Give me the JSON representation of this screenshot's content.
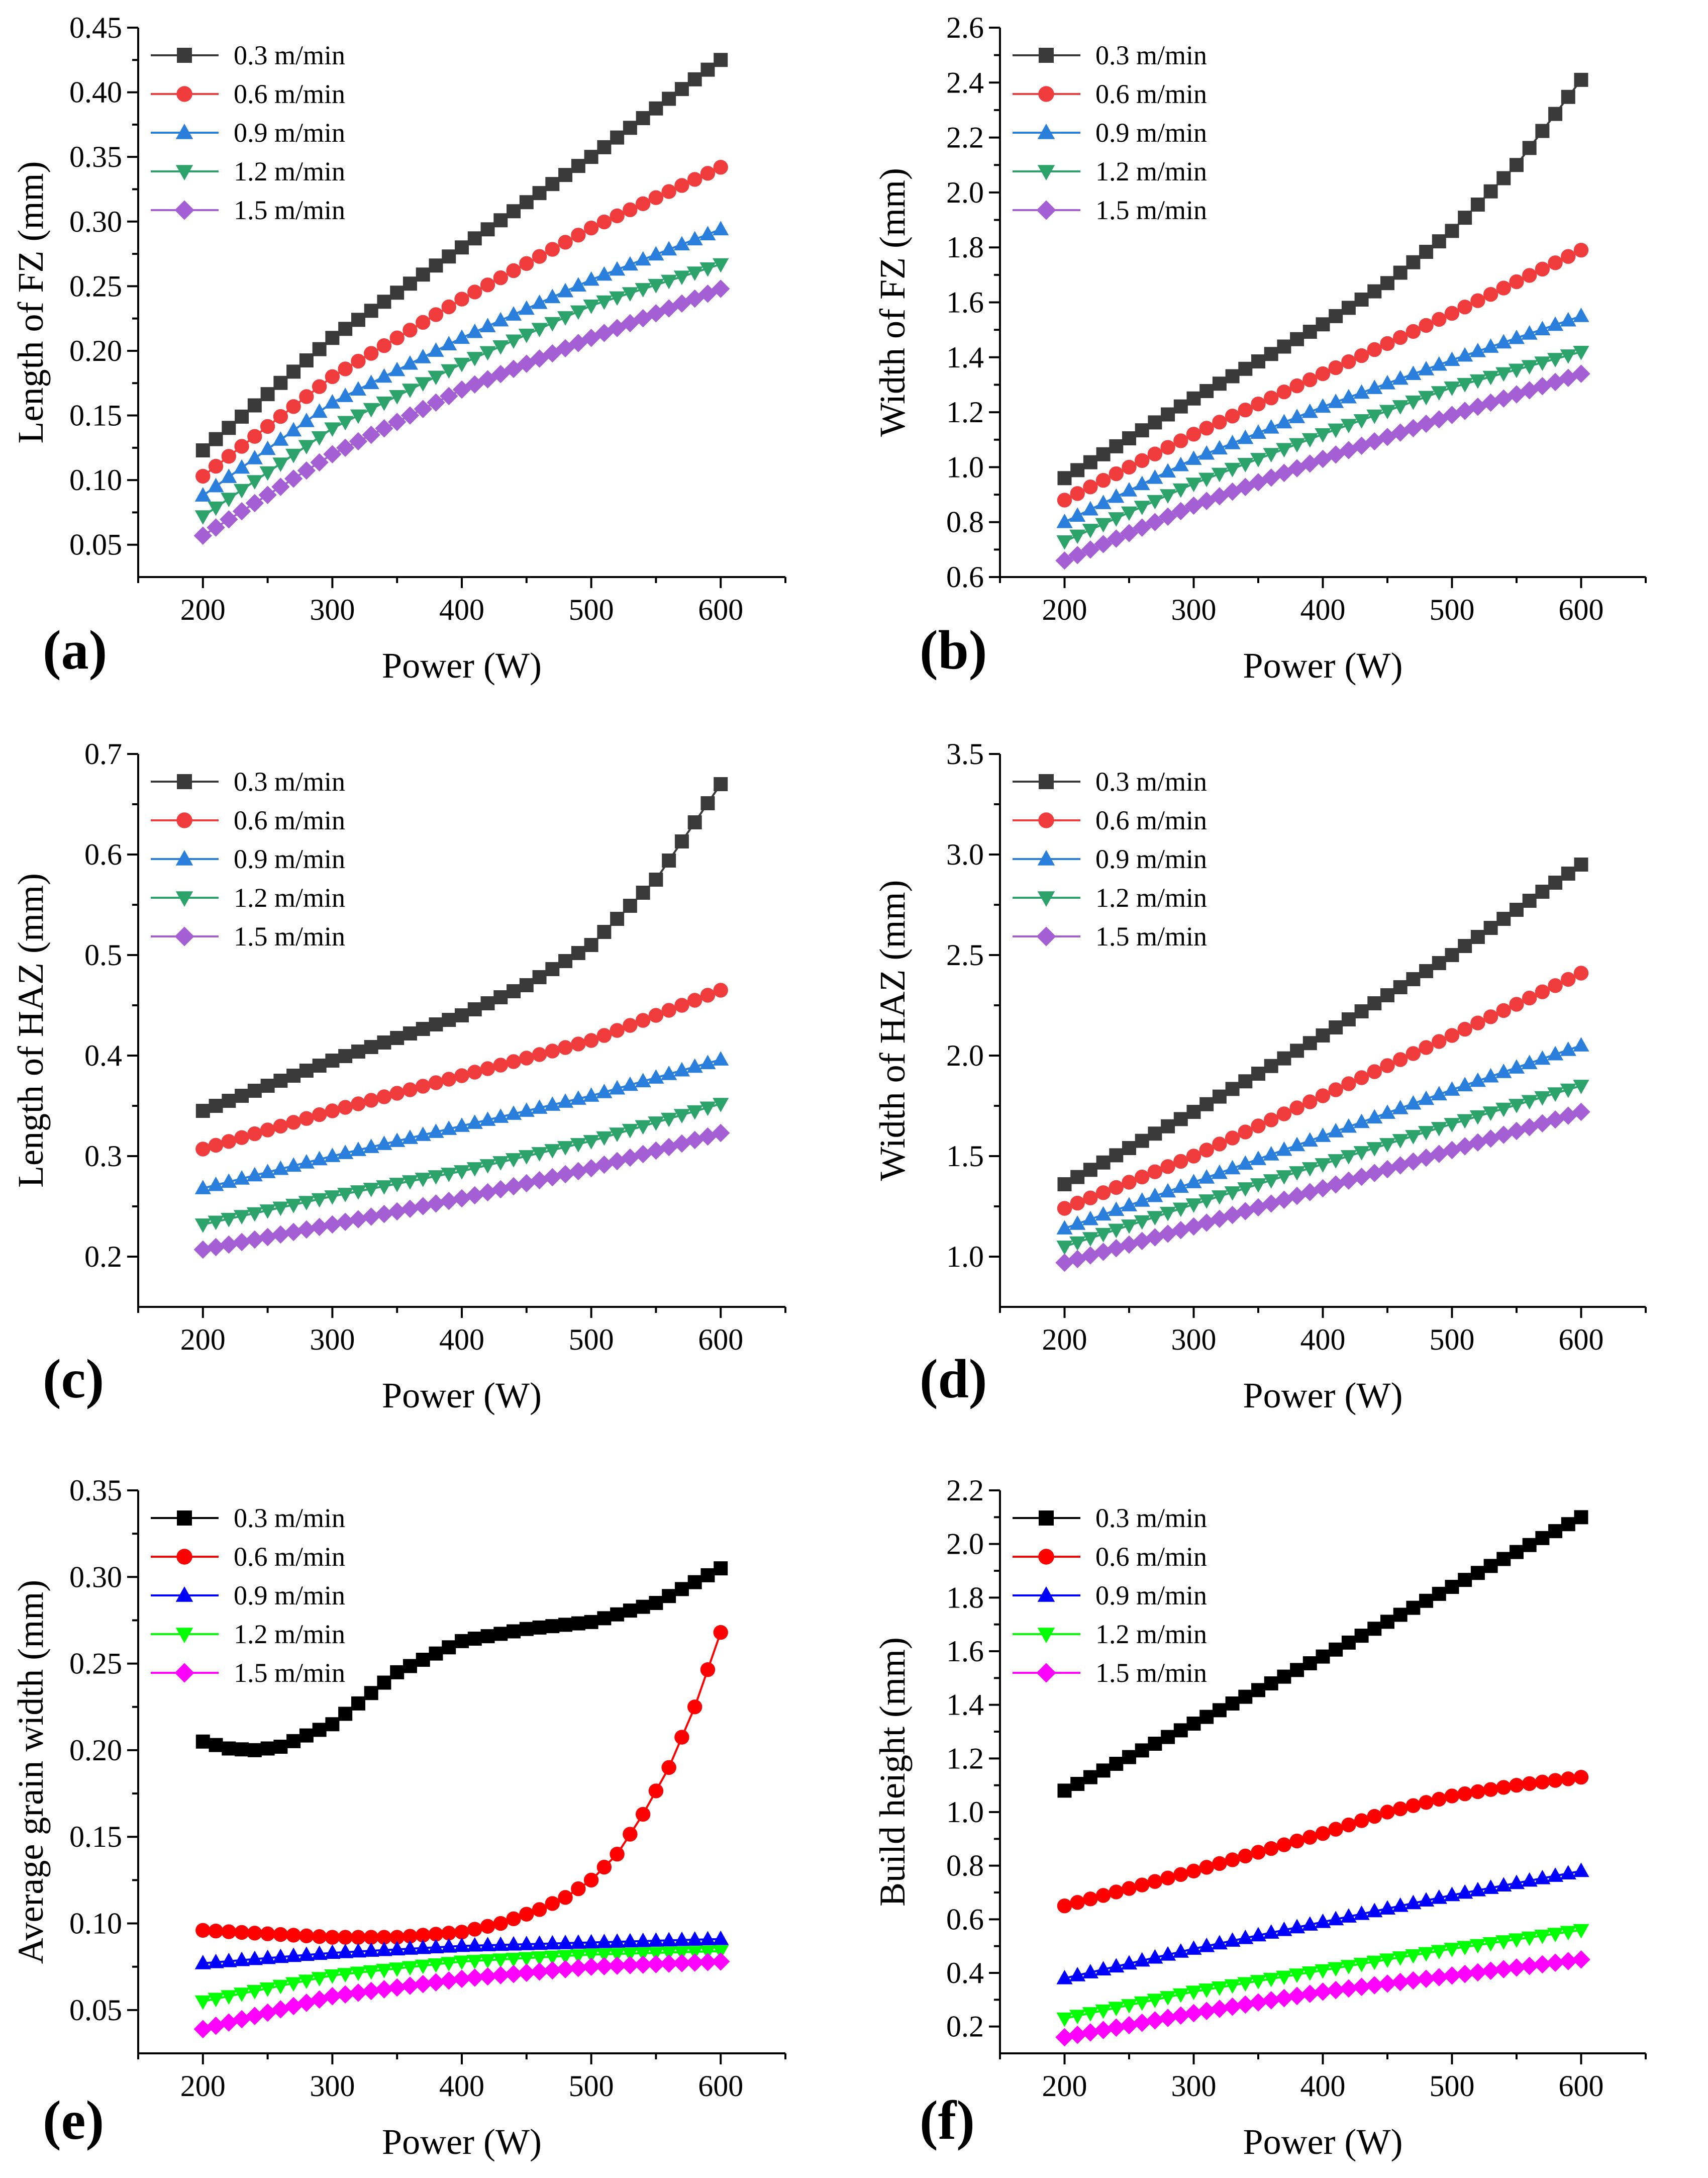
{
  "figure": {
    "panels_order": [
      "a",
      "b",
      "c",
      "d",
      "e",
      "f"
    ]
  },
  "chart_data": [
    {
      "id": "a",
      "panel_label": "(a)",
      "type": "line",
      "title": "",
      "xlabel": "Power (W)",
      "ylabel": "Length of FZ (mm)",
      "xlim": [
        150,
        650
      ],
      "ylim": [
        0.025,
        0.45
      ],
      "xticks": [
        200,
        300,
        400,
        500,
        600
      ],
      "xtick_labels": [
        "200",
        "300",
        "400",
        "500",
        "600"
      ],
      "yticks": [
        0.05,
        0.1,
        0.15,
        0.2,
        0.25,
        0.3,
        0.35,
        0.4,
        0.45
      ],
      "ytick_labels": [
        "0.05",
        "0.10",
        "0.15",
        "0.20",
        "0.25",
        "0.30",
        "0.35",
        "0.40",
        "0.45"
      ],
      "legend_position": "top-left",
      "grid": false,
      "x_range": [
        200,
        600
      ],
      "n_points": 41,
      "series": [
        {
          "name": "0.3 m/min",
          "marker": "square",
          "color": "#3a3a3a",
          "key_x": [
            200,
            300,
            400,
            500,
            600
          ],
          "key_y": [
            0.123,
            0.21,
            0.28,
            0.35,
            0.425
          ]
        },
        {
          "name": "0.6 m/min",
          "marker": "circle",
          "color": "#f03c3c",
          "key_x": [
            200,
            300,
            400,
            500,
            600
          ],
          "key_y": [
            0.103,
            0.18,
            0.24,
            0.295,
            0.342
          ]
        },
        {
          "name": "0.9 m/min",
          "marker": "triangle-up",
          "color": "#2a7fdc",
          "key_x": [
            200,
            300,
            400,
            500,
            600
          ],
          "key_y": [
            0.088,
            0.16,
            0.21,
            0.255,
            0.294
          ]
        },
        {
          "name": "1.2 m/min",
          "marker": "triangle-down",
          "color": "#2ca36a",
          "key_x": [
            200,
            300,
            400,
            500,
            600
          ],
          "key_y": [
            0.072,
            0.14,
            0.19,
            0.235,
            0.267
          ]
        },
        {
          "name": "1.5 m/min",
          "marker": "diamond",
          "color": "#a45fd4",
          "key_x": [
            200,
            300,
            400,
            500,
            600
          ],
          "key_y": [
            0.057,
            0.12,
            0.17,
            0.21,
            0.248
          ]
        }
      ]
    },
    {
      "id": "b",
      "panel_label": "(b)",
      "type": "line",
      "title": "",
      "xlabel": "Power (W)",
      "ylabel": "Width of FZ (mm)",
      "xlim": [
        150,
        650
      ],
      "ylim": [
        0.6,
        2.6
      ],
      "xticks": [
        200,
        300,
        400,
        500,
        600
      ],
      "xtick_labels": [
        "200",
        "300",
        "400",
        "500",
        "600"
      ],
      "yticks": [
        0.6,
        0.8,
        1.0,
        1.2,
        1.4,
        1.6,
        1.8,
        2.0,
        2.2,
        2.4,
        2.6
      ],
      "ytick_labels": [
        "0.6",
        "0.8",
        "1.0",
        "1.2",
        "1.4",
        "1.6",
        "1.8",
        "2.0",
        "2.2",
        "2.4",
        "2.6"
      ],
      "legend_position": "top-left",
      "grid": false,
      "x_range": [
        200,
        600
      ],
      "n_points": 41,
      "series": [
        {
          "name": "0.3 m/min",
          "marker": "square",
          "color": "#3a3a3a",
          "key_x": [
            200,
            300,
            400,
            450,
            500,
            550,
            600
          ],
          "key_y": [
            0.96,
            1.25,
            1.52,
            1.67,
            1.86,
            2.1,
            2.41
          ]
        },
        {
          "name": "0.6 m/min",
          "marker": "circle",
          "color": "#f03c3c",
          "key_x": [
            200,
            300,
            400,
            500,
            600
          ],
          "key_y": [
            0.88,
            1.12,
            1.34,
            1.56,
            1.79
          ]
        },
        {
          "name": "0.9 m/min",
          "marker": "triangle-up",
          "color": "#2a7fdc",
          "key_x": [
            200,
            300,
            400,
            500,
            600
          ],
          "key_y": [
            0.8,
            1.03,
            1.22,
            1.39,
            1.55
          ]
        },
        {
          "name": "1.2 m/min",
          "marker": "triangle-down",
          "color": "#2ca36a",
          "key_x": [
            200,
            300,
            400,
            500,
            600
          ],
          "key_y": [
            0.73,
            0.94,
            1.12,
            1.29,
            1.42
          ]
        },
        {
          "name": "1.5 m/min",
          "marker": "diamond",
          "color": "#a45fd4",
          "key_x": [
            200,
            300,
            400,
            500,
            600
          ],
          "key_y": [
            0.66,
            0.86,
            1.03,
            1.19,
            1.34
          ]
        }
      ]
    },
    {
      "id": "c",
      "panel_label": "(c)",
      "type": "line",
      "title": "",
      "xlabel": "Power (W)",
      "ylabel": "Length of HAZ (mm)",
      "xlim": [
        150,
        650
      ],
      "ylim": [
        0.15,
        0.7
      ],
      "xticks": [
        200,
        300,
        400,
        500,
        600
      ],
      "xtick_labels": [
        "200",
        "300",
        "400",
        "500",
        "600"
      ],
      "yticks": [
        0.2,
        0.3,
        0.4,
        0.5,
        0.6,
        0.7
      ],
      "ytick_labels": [
        "0.2",
        "0.3",
        "0.4",
        "0.5",
        "0.6",
        "0.7"
      ],
      "legend_position": "top-left",
      "grid": false,
      "x_range": [
        200,
        600
      ],
      "n_points": 41,
      "series": [
        {
          "name": "0.3 m/min",
          "marker": "square",
          "color": "#3a3a3a",
          "key_x": [
            200,
            300,
            400,
            450,
            500,
            550,
            600
          ],
          "key_y": [
            0.345,
            0.395,
            0.44,
            0.47,
            0.51,
            0.575,
            0.67
          ]
        },
        {
          "name": "0.6 m/min",
          "marker": "circle",
          "color": "#f03c3c",
          "key_x": [
            200,
            300,
            400,
            500,
            600
          ],
          "key_y": [
            0.307,
            0.345,
            0.38,
            0.415,
            0.465
          ]
        },
        {
          "name": "0.9 m/min",
          "marker": "triangle-up",
          "color": "#2a7fdc",
          "key_x": [
            200,
            300,
            400,
            500,
            600
          ],
          "key_y": [
            0.268,
            0.3,
            0.33,
            0.36,
            0.396
          ]
        },
        {
          "name": "1.2 m/min",
          "marker": "triangle-down",
          "color": "#2ca36a",
          "key_x": [
            200,
            300,
            400,
            500,
            600
          ],
          "key_y": [
            0.232,
            0.26,
            0.285,
            0.315,
            0.352
          ]
        },
        {
          "name": "1.5 m/min",
          "marker": "diamond",
          "color": "#a45fd4",
          "key_x": [
            200,
            300,
            400,
            500,
            600
          ],
          "key_y": [
            0.207,
            0.232,
            0.258,
            0.288,
            0.323
          ]
        }
      ]
    },
    {
      "id": "d",
      "panel_label": "(d)",
      "type": "line",
      "title": "",
      "xlabel": "Power (W)",
      "ylabel": "Width of HAZ (mm)",
      "xlim": [
        150,
        650
      ],
      "ylim": [
        0.75,
        3.5
      ],
      "xticks": [
        200,
        300,
        400,
        500,
        600
      ],
      "xtick_labels": [
        "200",
        "300",
        "400",
        "500",
        "600"
      ],
      "yticks": [
        1.0,
        1.5,
        2.0,
        2.5,
        3.0,
        3.5
      ],
      "ytick_labels": [
        "1.0",
        "1.5",
        "2.0",
        "2.5",
        "3.0",
        "3.5"
      ],
      "legend_position": "top-left",
      "grid": false,
      "x_range": [
        200,
        600
      ],
      "n_points": 41,
      "series": [
        {
          "name": "0.3 m/min",
          "marker": "square",
          "color": "#3a3a3a",
          "key_x": [
            200,
            300,
            400,
            500,
            600
          ],
          "key_y": [
            1.36,
            1.72,
            2.1,
            2.5,
            2.95
          ]
        },
        {
          "name": "0.6 m/min",
          "marker": "circle",
          "color": "#f03c3c",
          "key_x": [
            200,
            300,
            400,
            500,
            600
          ],
          "key_y": [
            1.24,
            1.5,
            1.8,
            2.1,
            2.41
          ]
        },
        {
          "name": "0.9 m/min",
          "marker": "triangle-up",
          "color": "#2a7fdc",
          "key_x": [
            200,
            300,
            400,
            500,
            600
          ],
          "key_y": [
            1.14,
            1.37,
            1.6,
            1.83,
            2.05
          ]
        },
        {
          "name": "1.2 m/min",
          "marker": "triangle-down",
          "color": "#2ca36a",
          "key_x": [
            200,
            300,
            400,
            500,
            600
          ],
          "key_y": [
            1.05,
            1.26,
            1.46,
            1.66,
            1.85
          ]
        },
        {
          "name": "1.5 m/min",
          "marker": "diamond",
          "color": "#a45fd4",
          "key_x": [
            200,
            300,
            400,
            500,
            600
          ],
          "key_y": [
            0.97,
            1.15,
            1.34,
            1.53,
            1.72
          ]
        }
      ]
    },
    {
      "id": "e",
      "panel_label": "(e)",
      "type": "line",
      "title": "",
      "xlabel": "Power  (W)",
      "ylabel": "Average grain width (mm)",
      "xlim": [
        150,
        650
      ],
      "ylim": [
        0.025,
        0.35
      ],
      "xticks": [
        200,
        300,
        400,
        500,
        600
      ],
      "xtick_labels": [
        "200",
        "300",
        "400",
        "500",
        "600"
      ],
      "yticks": [
        0.05,
        0.1,
        0.15,
        0.2,
        0.25,
        0.3,
        0.35
      ],
      "ytick_labels": [
        "0.05",
        "0.10",
        "0.15",
        "0.20",
        "0.25",
        "0.30",
        "0.35"
      ],
      "legend_position": "top-left",
      "grid": false,
      "x_range": [
        200,
        600
      ],
      "n_points": 41,
      "series": [
        {
          "name": "0.3 m/min",
          "marker": "square",
          "color": "#000000",
          "key_x": [
            200,
            220,
            240,
            260,
            300,
            350,
            400,
            450,
            500,
            550,
            600
          ],
          "key_y": [
            0.205,
            0.201,
            0.2,
            0.202,
            0.215,
            0.245,
            0.263,
            0.27,
            0.274,
            0.285,
            0.305
          ]
        },
        {
          "name": "0.6 m/min",
          "marker": "circle",
          "color": "#ff0000",
          "key_x": [
            200,
            250,
            300,
            350,
            400,
            430,
            460,
            480,
            500,
            520,
            540,
            560,
            580,
            600
          ],
          "key_y": [
            0.096,
            0.094,
            0.092,
            0.092,
            0.095,
            0.1,
            0.108,
            0.115,
            0.125,
            0.14,
            0.163,
            0.19,
            0.225,
            0.268
          ]
        },
        {
          "name": "0.9 m/min",
          "marker": "triangle-up",
          "color": "#0000ff",
          "key_x": [
            200,
            300,
            400,
            500,
            600
          ],
          "key_y": [
            0.077,
            0.083,
            0.087,
            0.089,
            0.091
          ]
        },
        {
          "name": "1.2 m/min",
          "marker": "triangle-down",
          "color": "#00ff00",
          "key_x": [
            200,
            300,
            400,
            500,
            600
          ],
          "key_y": [
            0.055,
            0.07,
            0.078,
            0.082,
            0.084
          ]
        },
        {
          "name": "1.5 m/min",
          "marker": "diamond",
          "color": "#ff00ff",
          "key_x": [
            200,
            300,
            400,
            500,
            600
          ],
          "key_y": [
            0.039,
            0.058,
            0.068,
            0.075,
            0.078
          ]
        }
      ]
    },
    {
      "id": "f",
      "panel_label": "(f)",
      "type": "line",
      "title": "",
      "xlabel": "Power (W)",
      "ylabel": "Build height (mm)",
      "xlim": [
        150,
        650
      ],
      "ylim": [
        0.1,
        2.2
      ],
      "xticks": [
        200,
        300,
        400,
        500,
        600
      ],
      "xtick_labels": [
        "200",
        "300",
        "400",
        "500",
        "600"
      ],
      "yticks": [
        0.2,
        0.4,
        0.6,
        0.8,
        1.0,
        1.2,
        1.4,
        1.6,
        1.8,
        2.0,
        2.2
      ],
      "ytick_labels": [
        "0.2",
        "0.4",
        "0.6",
        "0.8",
        "1.0",
        "1.2",
        "1.4",
        "1.6",
        "1.8",
        "2.0",
        "2.2"
      ],
      "legend_position": "top-left",
      "grid": false,
      "x_range": [
        200,
        600
      ],
      "n_points": 41,
      "series": [
        {
          "name": "0.3 m/min",
          "marker": "square",
          "color": "#000000",
          "key_x": [
            200,
            300,
            400,
            500,
            600
          ],
          "key_y": [
            1.08,
            1.33,
            1.58,
            1.84,
            2.1
          ]
        },
        {
          "name": "0.6 m/min",
          "marker": "circle",
          "color": "#ff0000",
          "key_x": [
            200,
            300,
            400,
            450,
            500,
            550,
            600
          ],
          "key_y": [
            0.65,
            0.78,
            0.92,
            1.0,
            1.06,
            1.1,
            1.13
          ]
        },
        {
          "name": "0.9 m/min",
          "marker": "triangle-up",
          "color": "#0000ff",
          "key_x": [
            200,
            300,
            400,
            500,
            600
          ],
          "key_y": [
            0.38,
            0.49,
            0.59,
            0.69,
            0.78
          ]
        },
        {
          "name": "1.2 m/min",
          "marker": "triangle-down",
          "color": "#00ff00",
          "key_x": [
            200,
            300,
            400,
            500,
            600
          ],
          "key_y": [
            0.23,
            0.33,
            0.41,
            0.49,
            0.56
          ]
        },
        {
          "name": "1.5 m/min",
          "marker": "diamond",
          "color": "#ff00ff",
          "key_x": [
            200,
            300,
            400,
            500,
            600
          ],
          "key_y": [
            0.16,
            0.25,
            0.33,
            0.39,
            0.45
          ]
        }
      ]
    }
  ]
}
